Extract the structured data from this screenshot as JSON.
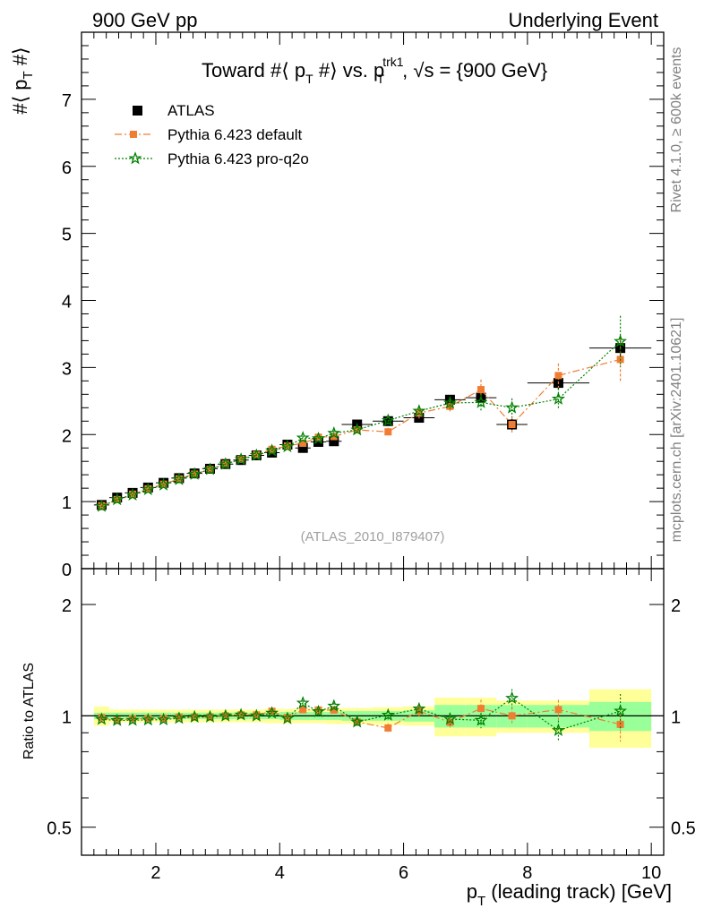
{
  "header": {
    "left": "900 GeV pp",
    "right": "Underlying Event"
  },
  "side_labels": {
    "rivet": "Rivet 4.1.0, ≥ 600k events",
    "mcplots": "mcplots.cern.ch [arXiv:2401.10621]"
  },
  "chart_data": {
    "type": "scatter",
    "title": "Toward #⟨ p_T #⟩ vs. p_T^trk1, √s = {900 GeV}",
    "title_main": "Toward #⟨ p",
    "title_sub1": "T",
    "title_mid": " #⟩ vs. p",
    "title_sup2": "trk1",
    "title_sub2": "T",
    "title_end": ", √s = {900 GeV}",
    "analysis_tag": "(ATLAS_2010_I879407)",
    "ylabel_main": "#⟨ p",
    "ylabel_sub": "T",
    "ylabel_end": " #⟩",
    "xlabel_main": "p",
    "xlabel_sub": "T",
    "xlabel_end": " (leading track) [GeV]",
    "ratio_ylabel": "Ratio to ATLAS",
    "xlim": [
      0.8,
      10.2
    ],
    "ylim": [
      0,
      8
    ],
    "ratio_ylim": [
      0.42,
      2.5
    ],
    "x_ticks": [
      "2",
      "4",
      "6",
      "8",
      "10"
    ],
    "y_ticks": [
      "0",
      "1",
      "2",
      "3",
      "4",
      "5",
      "6",
      "7"
    ],
    "ratio_ticks": [
      "0.5",
      "1",
      "2"
    ],
    "x": [
      1.125,
      1.375,
      1.625,
      1.875,
      2.125,
      2.375,
      2.625,
      2.875,
      3.125,
      3.375,
      3.625,
      3.875,
      4.125,
      4.375,
      4.625,
      4.875,
      5.25,
      5.75,
      6.25,
      6.75,
      7.25,
      7.75,
      8.5,
      9.5
    ],
    "x_err": [
      0.125,
      0.125,
      0.125,
      0.125,
      0.125,
      0.125,
      0.125,
      0.125,
      0.125,
      0.125,
      0.125,
      0.125,
      0.125,
      0.125,
      0.125,
      0.125,
      0.25,
      0.25,
      0.25,
      0.25,
      0.25,
      0.25,
      0.5,
      0.5
    ],
    "data_band_stat": [
      0.02,
      0.02,
      0.02,
      0.02,
      0.02,
      0.02,
      0.02,
      0.02,
      0.02,
      0.02,
      0.02,
      0.02,
      0.025,
      0.025,
      0.025,
      0.025,
      0.03,
      0.03,
      0.035,
      0.07,
      0.07,
      0.07,
      0.07,
      0.09
    ],
    "data_band_tot": [
      0.06,
      0.04,
      0.04,
      0.04,
      0.04,
      0.04,
      0.04,
      0.04,
      0.04,
      0.04,
      0.04,
      0.045,
      0.045,
      0.045,
      0.045,
      0.05,
      0.05,
      0.055,
      0.06,
      0.12,
      0.12,
      0.1,
      0.1,
      0.18
    ],
    "series": [
      {
        "name": "ATLAS",
        "color": "#000000",
        "marker": "square",
        "values": [
          0.95,
          1.06,
          1.13,
          1.21,
          1.28,
          1.35,
          1.42,
          1.49,
          1.56,
          1.62,
          1.69,
          1.73,
          1.85,
          1.8,
          1.89,
          1.9,
          2.15,
          2.2,
          2.25,
          2.52,
          2.55,
          2.15,
          2.77,
          3.29
        ],
        "errors": [
          0.01,
          0.01,
          0.01,
          0.01,
          0.01,
          0.01,
          0.01,
          0.01,
          0.01,
          0.01,
          0.01,
          0.01,
          0.02,
          0.02,
          0.02,
          0.02,
          0.03,
          0.03,
          0.04,
          0.05,
          0.06,
          0.08,
          0.1,
          0.12
        ]
      },
      {
        "name": "Pythia 6.423 default",
        "color": "#f07d32",
        "marker": "square",
        "values": [
          0.94,
          1.03,
          1.11,
          1.19,
          1.26,
          1.34,
          1.41,
          1.48,
          1.56,
          1.63,
          1.7,
          1.78,
          1.83,
          1.87,
          1.96,
          1.97,
          2.07,
          2.04,
          2.32,
          2.42,
          2.67,
          2.15,
          2.88,
          3.12
        ],
        "errors": [
          0.01,
          0.01,
          0.01,
          0.01,
          0.01,
          0.01,
          0.01,
          0.01,
          0.01,
          0.01,
          0.02,
          0.02,
          0.02,
          0.03,
          0.03,
          0.04,
          0.05,
          0.06,
          0.08,
          0.1,
          0.15,
          0.12,
          0.18,
          0.32
        ]
      },
      {
        "name": "Pythia 6.423 pro-q2o",
        "color": "#008000",
        "marker": "star",
        "values": [
          0.93,
          1.03,
          1.1,
          1.18,
          1.25,
          1.33,
          1.41,
          1.48,
          1.56,
          1.63,
          1.69,
          1.76,
          1.82,
          1.95,
          1.94,
          2.02,
          2.07,
          2.21,
          2.35,
          2.47,
          2.48,
          2.4,
          2.53,
          3.39
        ],
        "errors": [
          0.01,
          0.01,
          0.01,
          0.01,
          0.01,
          0.01,
          0.01,
          0.01,
          0.01,
          0.01,
          0.02,
          0.02,
          0.02,
          0.03,
          0.03,
          0.04,
          0.05,
          0.06,
          0.08,
          0.1,
          0.12,
          0.14,
          0.16,
          0.38
        ]
      }
    ]
  }
}
